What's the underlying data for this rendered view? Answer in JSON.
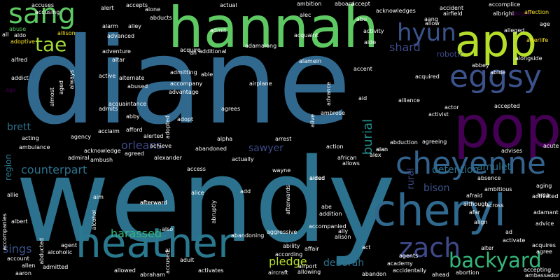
{
  "words": [
    {
      "text": "diane",
      "color": "#31688e"
    },
    {
      "text": "wendy",
      "color": "#2c728e"
    },
    {
      "text": "hannah",
      "color": "#5ec962"
    },
    {
      "text": "pop",
      "color": "#440154"
    },
    {
      "text": "heather",
      "color": "#2a788e"
    },
    {
      "text": "cheryl",
      "color": "#31688e"
    },
    {
      "text": "cheyenne",
      "color": "#33638d"
    },
    {
      "text": "app",
      "color": "#b5de2b"
    },
    {
      "text": "eggsy",
      "color": "#3b528b"
    },
    {
      "text": "sang",
      "color": "#5ec962"
    },
    {
      "text": "zach",
      "color": "#3e4a89"
    },
    {
      "text": "backyard",
      "color": "#35b779"
    },
    {
      "text": "hyun",
      "color": "#3b528b"
    },
    {
      "text": "tae",
      "color": "#a2da37"
    },
    {
      "text": "shard",
      "color": "#3e4a89"
    },
    {
      "text": "orleans",
      "color": "#3e4a89"
    },
    {
      "text": "counterpart",
      "color": "#2c728e"
    },
    {
      "text": "burial",
      "color": "#21918c"
    },
    {
      "text": "amulet",
      "color": "#2c728e"
    },
    {
      "text": "harassed",
      "color": "#35b779"
    },
    {
      "text": "sings",
      "color": "#3b528b"
    },
    {
      "text": "pledge",
      "color": "#b5de2b"
    },
    {
      "text": "deborah",
      "color": "#2c728e"
    },
    {
      "text": "detention",
      "color": "#2c728e"
    },
    {
      "text": "bison",
      "color": "#3b528b"
    },
    {
      "text": "brett",
      "color": "#2c728e"
    },
    {
      "text": "sawyer",
      "color": "#3e4a89"
    },
    {
      "text": "rural",
      "color": "#3e4a89"
    },
    {
      "text": "region",
      "color": "#2a788e"
    },
    {
      "text": "robotic",
      "color": "#3e4a89"
    },
    {
      "text": "accuses",
      "color": "#ffffff"
    },
    {
      "text": "accusing",
      "color": "#ffffff"
    },
    {
      "text": "abuse",
      "color": "#5ec962"
    },
    {
      "text": "allison",
      "color": "#fde725"
    },
    {
      "text": "alarm",
      "color": "#ffffff"
    },
    {
      "text": "alley",
      "color": "#ffffff"
    },
    {
      "text": "advanced",
      "color": "#ffffff"
    },
    {
      "text": "alert",
      "color": "#ffffff"
    },
    {
      "text": "accepts",
      "color": "#ffffff"
    },
    {
      "text": "alone",
      "color": "#ffffff"
    },
    {
      "text": "abducts",
      "color": "#ffffff"
    },
    {
      "text": "actual",
      "color": "#ffffff"
    },
    {
      "text": "ambition",
      "color": "#ffffff"
    },
    {
      "text": "aboard",
      "color": "#ffffff"
    },
    {
      "text": "alec",
      "color": "#ffffff"
    },
    {
      "text": "abu",
      "color": "#ffffff"
    },
    {
      "text": "accept",
      "color": "#ffffff"
    },
    {
      "text": "acknowledges",
      "color": "#ffffff"
    },
    {
      "text": "allow",
      "color": "#ffffff"
    },
    {
      "text": "accident",
      "color": "#ffffff"
    },
    {
      "text": "aang",
      "color": "#ffffff"
    },
    {
      "text": "accomplice",
      "color": "#ffffff"
    },
    {
      "text": "airfield",
      "color": "#ffffff"
    },
    {
      "text": "albright",
      "color": "#ffffff"
    },
    {
      "text": "abigail",
      "color": "#440154"
    },
    {
      "text": "affection",
      "color": "#fde725"
    },
    {
      "text": "adoptive",
      "color": "#fde725"
    },
    {
      "text": "alfred",
      "color": "#ffffff"
    },
    {
      "text": "addict",
      "color": "#ffffff"
    },
    {
      "text": "ago",
      "color": "#440154"
    },
    {
      "text": "adventure",
      "color": "#ffffff"
    },
    {
      "text": "altar",
      "color": "#ffffff"
    },
    {
      "text": "acquire",
      "color": "#ffffff"
    },
    {
      "text": "ah",
      "color": "#ffffff"
    },
    {
      "text": "additional",
      "color": "#ffffff"
    },
    {
      "text": "adam",
      "color": "#ffffff"
    },
    {
      "text": "along",
      "color": "#ffffff"
    },
    {
      "text": "aide",
      "color": "#ffffff"
    },
    {
      "text": "activity",
      "color": "#ffffff"
    },
    {
      "text": "afterlife",
      "color": "#fde725"
    },
    {
      "text": "age",
      "color": "#ffffff"
    },
    {
      "text": "alamein",
      "color": "#ffffff"
    },
    {
      "text": "abbey",
      "color": "#ffffff"
    },
    {
      "text": "alongside",
      "color": "#ffffff"
    },
    {
      "text": "active",
      "color": "#ffffff"
    },
    {
      "text": "alternate",
      "color": "#ffffff"
    },
    {
      "text": "abused",
      "color": "#ffffff"
    },
    {
      "text": "admitting",
      "color": "#ffffff"
    },
    {
      "text": "able",
      "color": "#ffffff"
    },
    {
      "text": "airplane",
      "color": "#ffffff"
    },
    {
      "text": "acquired",
      "color": "#ffffff"
    },
    {
      "text": "accompany",
      "color": "#ffffff"
    },
    {
      "text": "advantage",
      "color": "#ffffff"
    },
    {
      "text": "aid",
      "color": "#ffffff"
    },
    {
      "text": "alliance",
      "color": "#ffffff"
    },
    {
      "text": "actor",
      "color": "#ffffff"
    },
    {
      "text": "activist",
      "color": "#ffffff"
    },
    {
      "text": "accepted",
      "color": "#ffffff"
    },
    {
      "text": "acquaintance",
      "color": "#ffffff"
    },
    {
      "text": "afford",
      "color": "#ffffff"
    },
    {
      "text": "admits",
      "color": "#ffffff"
    },
    {
      "text": "abby",
      "color": "#ffffff"
    },
    {
      "text": "agrees",
      "color": "#ffffff"
    },
    {
      "text": "ambrose",
      "color": "#ffffff"
    },
    {
      "text": "adopt",
      "color": "#ffffff"
    },
    {
      "text": "acting",
      "color": "#ffffff"
    },
    {
      "text": "ambulance",
      "color": "#ffffff"
    },
    {
      "text": "agency",
      "color": "#ffffff"
    },
    {
      "text": "alerted",
      "color": "#ffffff"
    },
    {
      "text": "alpha",
      "color": "#ffffff"
    },
    {
      "text": "abduction",
      "color": "#ffffff"
    },
    {
      "text": "agreeing",
      "color": "#ffffff"
    },
    {
      "text": "acknowledge",
      "color": "#ffffff"
    },
    {
      "text": "achieve",
      "color": "#ffffff"
    },
    {
      "text": "abandoned",
      "color": "#ffffff"
    },
    {
      "text": "action",
      "color": "#ffffff"
    },
    {
      "text": "alan",
      "color": "#ffffff"
    },
    {
      "text": "advises",
      "color": "#ffffff"
    },
    {
      "text": "admiral",
      "color": "#ffffff"
    },
    {
      "text": "ambush",
      "color": "#ffffff"
    },
    {
      "text": "agreed",
      "color": "#ffffff"
    },
    {
      "text": "alexander",
      "color": "#ffffff"
    },
    {
      "text": "actually",
      "color": "#ffffff"
    },
    {
      "text": "african",
      "color": "#ffffff"
    },
    {
      "text": "allows",
      "color": "#ffffff"
    },
    {
      "text": "alex",
      "color": "#ffffff"
    },
    {
      "text": "absence",
      "color": "#ffffff"
    },
    {
      "text": "allie",
      "color": "#ffffff"
    },
    {
      "text": "aim",
      "color": "#ffffff"
    },
    {
      "text": "afterward",
      "color": "#ffffff"
    },
    {
      "text": "alice",
      "color": "#ffffff"
    },
    {
      "text": "add",
      "color": "#ffffff"
    },
    {
      "text": "aided",
      "color": "#ffffff"
    },
    {
      "text": "ambitious",
      "color": "#ffffff"
    },
    {
      "text": "aging",
      "color": "#ffffff"
    },
    {
      "text": "afraid",
      "color": "#ffffff"
    },
    {
      "text": "area",
      "color": "#ffffff"
    },
    {
      "text": "activated",
      "color": "#ffffff"
    },
    {
      "text": "although",
      "color": "#ffffff"
    },
    {
      "text": "across",
      "color": "#ffffff"
    },
    {
      "text": "abe",
      "color": "#ffffff"
    },
    {
      "text": "addition",
      "color": "#ffffff"
    },
    {
      "text": "align",
      "color": "#ffffff"
    },
    {
      "text": "advice",
      "color": "#ffffff"
    },
    {
      "text": "alison",
      "color": "#ffffff"
    },
    {
      "text": "ad",
      "color": "#ffffff"
    },
    {
      "text": "abandoning",
      "color": "#ffffff"
    },
    {
      "text": "aggressive",
      "color": "#ffffff"
    },
    {
      "text": "accompanied",
      "color": "#ffffff"
    },
    {
      "text": "activate",
      "color": "#ffffff"
    },
    {
      "text": "agree",
      "color": "#ffffff"
    },
    {
      "text": "acquires",
      "color": "#ffffff"
    },
    {
      "text": "agent",
      "color": "#ffffff"
    },
    {
      "text": "alcoholic",
      "color": "#ffffff"
    },
    {
      "text": "ai",
      "color": "#ffffff"
    },
    {
      "text": "adult",
      "color": "#ffffff"
    },
    {
      "text": "ability",
      "color": "#ffffff"
    },
    {
      "text": "according",
      "color": "#ffffff"
    },
    {
      "text": "affair",
      "color": "#ffffff"
    },
    {
      "text": "act",
      "color": "#ffffff"
    },
    {
      "text": "alter",
      "color": "#ffffff"
    },
    {
      "text": "account",
      "color": "#ffffff"
    },
    {
      "text": "allen",
      "color": "#ffffff"
    },
    {
      "text": "admitted",
      "color": "#ffffff"
    },
    {
      "text": "allowed",
      "color": "#ffffff"
    },
    {
      "text": "abraham",
      "color": "#ffffff"
    },
    {
      "text": "activates",
      "color": "#ffffff"
    },
    {
      "text": "allowing",
      "color": "#ffffff"
    },
    {
      "text": "airport",
      "color": "#ffffff"
    },
    {
      "text": "aircraft",
      "color": "#ffffff"
    },
    {
      "text": "abandon",
      "color": "#ffffff"
    },
    {
      "text": "academy",
      "color": "#ffffff"
    },
    {
      "text": "accidentally",
      "color": "#ffffff"
    },
    {
      "text": "ahead",
      "color": "#ffffff"
    },
    {
      "text": "abortion",
      "color": "#ffffff"
    },
    {
      "text": "accepting",
      "color": "#ffffff"
    },
    {
      "text": "ambassador",
      "color": "#ffffff"
    },
    {
      "text": "aaron",
      "color": "#ffffff"
    },
    {
      "text": "albert",
      "color": "#ffffff"
    },
    {
      "text": "accompanies",
      "color": "#ffffff"
    },
    {
      "text": "almost",
      "color": "#ffffff"
    },
    {
      "text": "aged",
      "color": "#ffffff"
    },
    {
      "text": "always",
      "color": "#ffffff"
    },
    {
      "text": "adopted",
      "color": "#ffffff"
    },
    {
      "text": "also",
      "color": "#ffffff"
    },
    {
      "text": "alcohol",
      "color": "#ffffff"
    },
    {
      "text": "abruptly",
      "color": "#ffffff"
    },
    {
      "text": "afterwards",
      "color": "#ffffff"
    },
    {
      "text": "advance",
      "color": "#ffffff"
    },
    {
      "text": "abducted",
      "color": "#ffffff"
    },
    {
      "text": "accused",
      "color": "#ffffff"
    },
    {
      "text": "acclaim",
      "color": "#ffffff"
    },
    {
      "text": "acute",
      "color": "#ffffff"
    },
    {
      "text": "accent",
      "color": "#ffffff"
    },
    {
      "text": "alleged",
      "color": "#ffffff"
    },
    {
      "text": "access",
      "color": "#ffffff"
    },
    {
      "text": "alive",
      "color": "#ffffff"
    },
    {
      "text": "arrest",
      "color": "#ffffff"
    },
    {
      "text": "ally",
      "color": "#ffffff"
    },
    {
      "text": "aldo",
      "color": "#ffffff"
    },
    {
      "text": "agents",
      "color": "#ffffff"
    },
    {
      "text": "afar",
      "color": "#ffffff"
    },
    {
      "text": "adamant",
      "color": "#ffffff"
    },
    {
      "text": "acquaint",
      "color": "#ffffff"
    },
    {
      "text": "admit",
      "color": "#ffffff"
    },
    {
      "text": "abide",
      "color": "#ffffff"
    },
    {
      "text": "aided",
      "color": "#ffffff"
    },
    {
      "text": "alan",
      "color": "#ffffff"
    },
    {
      "text": "afterward",
      "color": "#ffffff"
    },
    {
      "text": "aided",
      "color": "#ffffff"
    },
    {
      "text": "wayne",
      "color": "#ffffff"
    },
    {
      "text": "all",
      "color": "#ffffff"
    }
  ]
}
